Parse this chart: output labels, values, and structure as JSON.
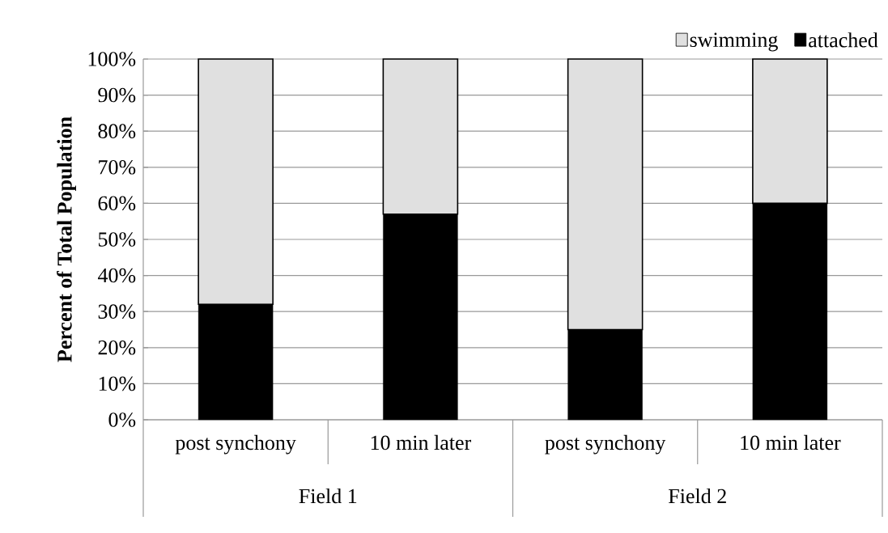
{
  "chart_data": {
    "type": "bar",
    "stacked": true,
    "ylabel": "Percent of Total Population",
    "categories": [
      "post synchony",
      "10 min later",
      "post synchony",
      "10 min later"
    ],
    "annotations": [
      "Field 1",
      "Field 2"
    ],
    "series": [
      {
        "name": "attached",
        "color": "#000000",
        "values": [
          32,
          57,
          25,
          60
        ]
      },
      {
        "name": "swimming",
        "color": "#e0e0e0",
        "values": [
          68,
          43,
          75,
          40
        ]
      }
    ],
    "ylim": [
      0,
      100
    ],
    "yticks": [
      {
        "value": 0,
        "label": "0%"
      },
      {
        "value": 10,
        "label": "10%"
      },
      {
        "value": 20,
        "label": "20%"
      },
      {
        "value": 30,
        "label": "30%"
      },
      {
        "value": 40,
        "label": "40%"
      },
      {
        "value": 50,
        "label": "50%"
      },
      {
        "value": 60,
        "label": "60%"
      },
      {
        "value": 70,
        "label": "70%"
      },
      {
        "value": 80,
        "label": "80%"
      },
      {
        "value": 90,
        "label": "90%"
      },
      {
        "value": 100,
        "label": "100%"
      }
    ],
    "grid": "y",
    "legend": "top right"
  }
}
